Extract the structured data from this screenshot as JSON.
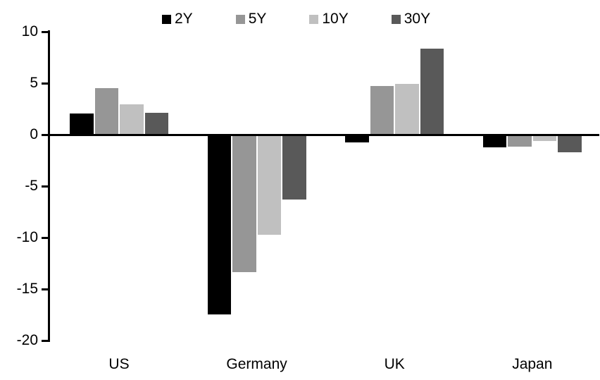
{
  "chart_data": {
    "type": "bar",
    "title": "",
    "xlabel": "",
    "ylabel": "",
    "categories": [
      "US",
      "Germany",
      "UK",
      "Japan"
    ],
    "series": [
      {
        "name": "2Y",
        "color": "#000000",
        "values": [
          2.1,
          -17.5,
          -0.8,
          -1.3
        ]
      },
      {
        "name": "5Y",
        "color": "#969696",
        "values": [
          4.6,
          -13.4,
          4.8,
          -1.2
        ]
      },
      {
        "name": "10Y",
        "color": "#c0c0c0",
        "values": [
          3.0,
          -9.8,
          5.0,
          -0.7
        ]
      },
      {
        "name": "30Y",
        "color": "#595959",
        "values": [
          2.2,
          -6.4,
          8.4,
          -1.8
        ]
      }
    ],
    "ylim": [
      -20,
      10
    ],
    "yticks": [
      10,
      5,
      0,
      -5,
      -10,
      -15,
      -20
    ],
    "grid": false,
    "legend_position": "top",
    "axis_color": "#000000",
    "background_color": "#ffffff"
  }
}
